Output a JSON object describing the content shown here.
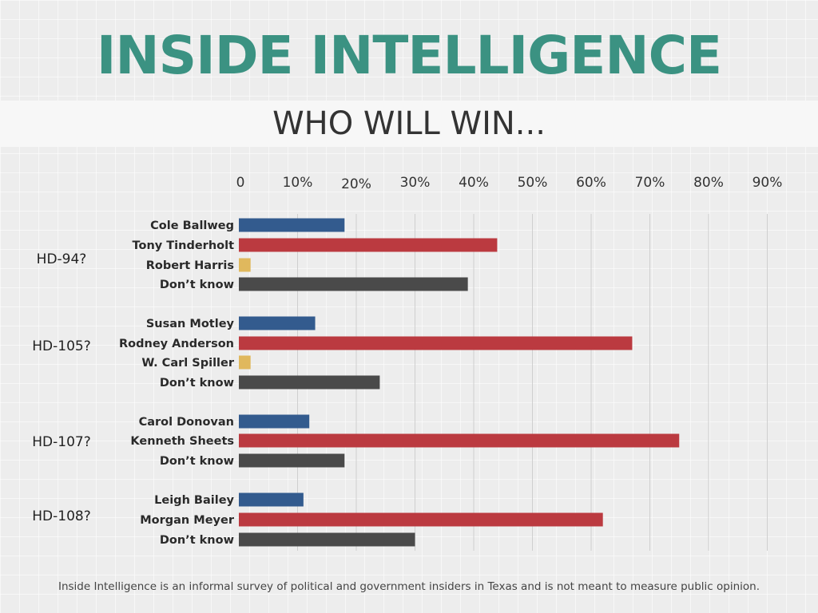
{
  "header": {
    "title": "INSIDE INTELLIGENCE",
    "subtitle": "WHO WILL WIN..."
  },
  "colors": {
    "title": "#3b9282",
    "blue": "#335b8e",
    "red": "#bb3a40",
    "yellow": "#e0b85d",
    "dark": "#4a4a4a",
    "grid": "#cfcfcf",
    "text": "#333333"
  },
  "chart_data": {
    "type": "bar",
    "orientation": "horizontal",
    "xlim": [
      0,
      90
    ],
    "ticks": [
      "0",
      "10%",
      "20%",
      "30%",
      "40%",
      "50%",
      "60%",
      "70%",
      "80%",
      "90%"
    ],
    "grid": true,
    "groups": [
      {
        "label": "HD-94?",
        "items": [
          {
            "name": "Cole Ballweg",
            "value": 18,
            "color": "blue"
          },
          {
            "name": "Tony Tinderholt",
            "value": 44,
            "color": "red"
          },
          {
            "name": "Robert Harris",
            "value": 2,
            "color": "yellow"
          },
          {
            "name": "Don’t know",
            "value": 39,
            "color": "dark"
          }
        ]
      },
      {
        "label": "HD-105?",
        "items": [
          {
            "name": "Susan Motley",
            "value": 13,
            "color": "blue"
          },
          {
            "name": "Rodney Anderson",
            "value": 67,
            "color": "red"
          },
          {
            "name": "W. Carl Spiller",
            "value": 2,
            "color": "yellow"
          },
          {
            "name": "Don’t know",
            "value": 24,
            "color": "dark"
          }
        ]
      },
      {
        "label": "HD-107?",
        "items": [
          {
            "name": "Carol Donovan",
            "value": 12,
            "color": "blue"
          },
          {
            "name": "Kenneth Sheets",
            "value": 75,
            "color": "red"
          },
          {
            "name": "Don’t know",
            "value": 18,
            "color": "dark"
          }
        ]
      },
      {
        "label": "HD-108?",
        "items": [
          {
            "name": "Leigh Bailey",
            "value": 11,
            "color": "blue"
          },
          {
            "name": "Morgan Meyer",
            "value": 62,
            "color": "red"
          },
          {
            "name": "Don’t know",
            "value": 30,
            "color": "dark"
          }
        ]
      }
    ]
  },
  "footnote": "Inside Intelligence is an informal survey of political and government insiders in Texas and is not meant to measure public opinion."
}
